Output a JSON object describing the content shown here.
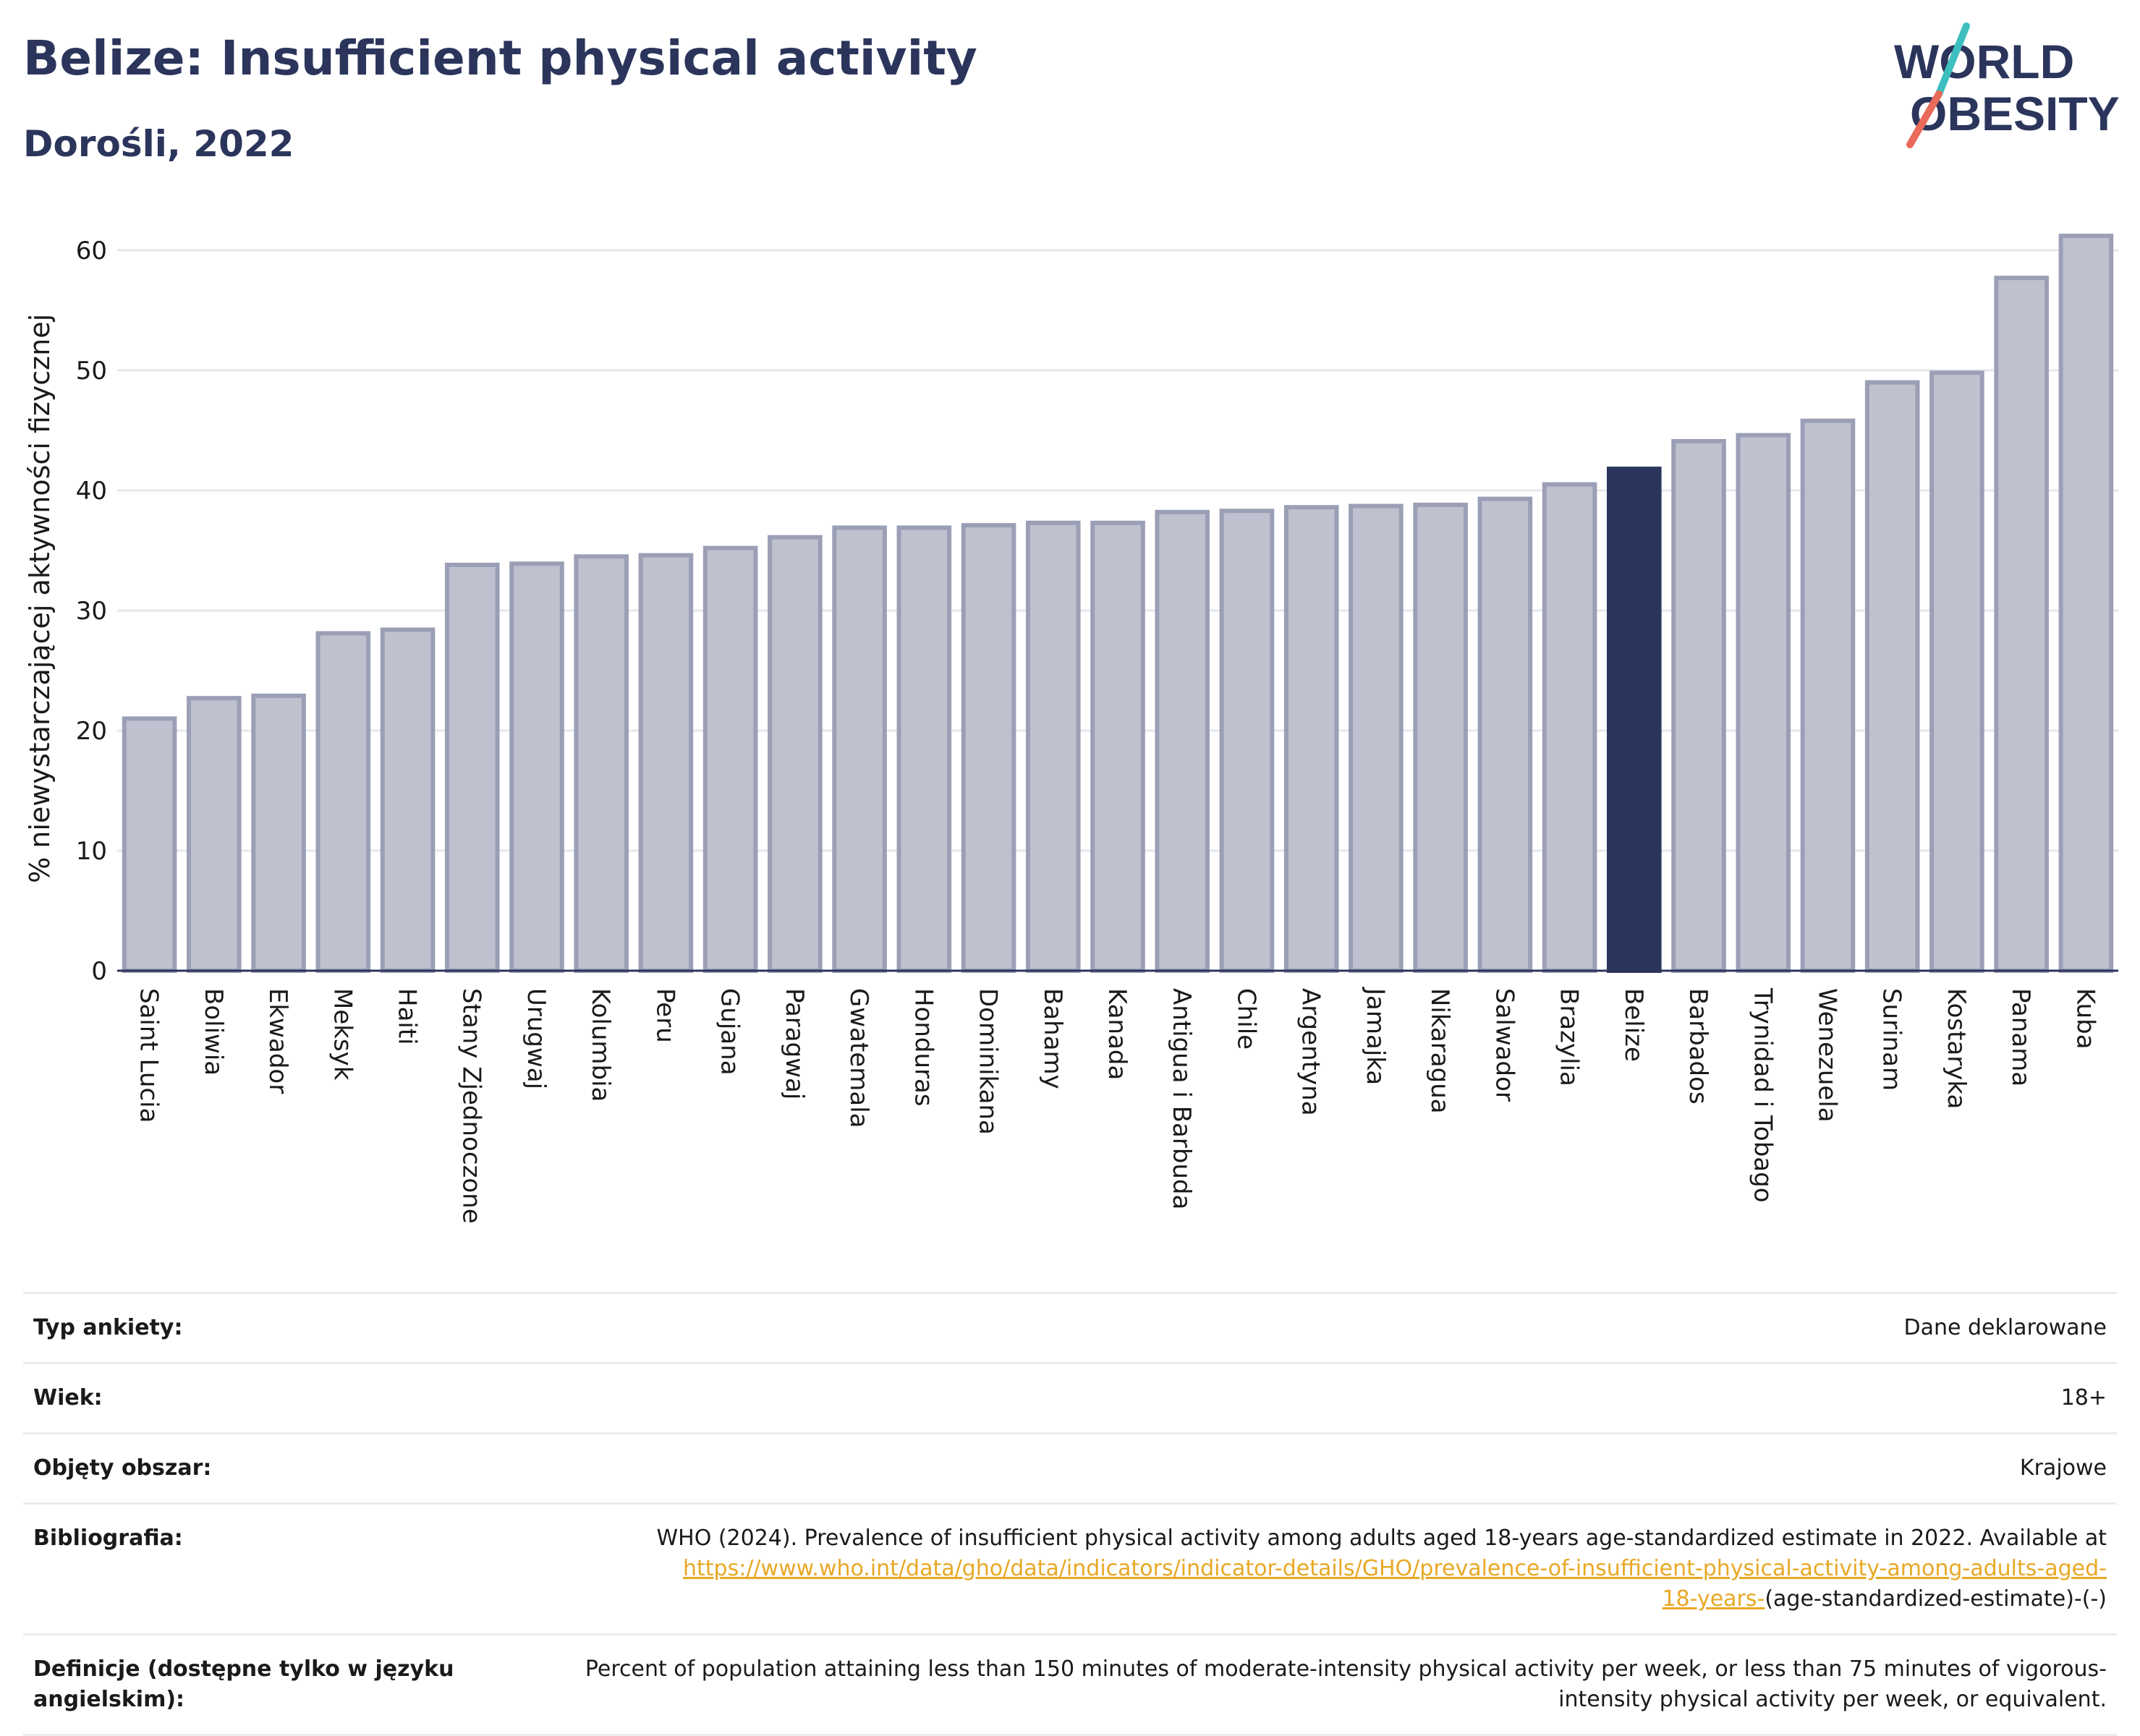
{
  "header": {
    "title": "Belize: Insufficient physical activity",
    "subtitle": "Dorośli, 2022",
    "logo_line1": "WORLD",
    "logo_line2": "OBESITY"
  },
  "colors": {
    "highlight_bar": "#2b355c",
    "bar_fill": "#bfc1ce",
    "bar_stroke": "#9b9fb6",
    "title": "#2b355c",
    "link": "#e8a825",
    "logo_slash_teal": "#3dbfc0",
    "logo_slash_red": "#ea6a5a"
  },
  "chart_data": {
    "type": "bar",
    "ylabel": "% niewystarczającej aktywności fizycznej",
    "ylim": [
      0,
      62
    ],
    "yticks": [
      0,
      10,
      20,
      30,
      40,
      50,
      60
    ],
    "grid": true,
    "highlight": "Belize",
    "categories": [
      "Saint Lucia",
      "Boliwia",
      "Ekwador",
      "Meksyk",
      "Haiti",
      "Stany Zjednoczone",
      "Urugwaj",
      "Kolumbia",
      "Peru",
      "Gujana",
      "Paragwaj",
      "Gwatemala",
      "Honduras",
      "Dominikana",
      "Bahamy",
      "Kanada",
      "Antigua i Barbuda",
      "Chile",
      "Argentyna",
      "Jamajka",
      "Nikaragua",
      "Salwador",
      "Brazylia",
      "Belize",
      "Barbados",
      "Trynidad i Tobago",
      "Wenezuela",
      "Surinam",
      "Kostaryka",
      "Panama",
      "Kuba"
    ],
    "values": [
      21.0,
      22.7,
      22.9,
      28.1,
      28.4,
      33.8,
      33.9,
      34.5,
      34.6,
      35.2,
      36.1,
      36.9,
      36.9,
      37.1,
      37.3,
      37.3,
      38.2,
      38.3,
      38.6,
      38.7,
      38.8,
      39.3,
      40.5,
      41.8,
      44.1,
      44.6,
      45.8,
      49.0,
      49.8,
      57.7,
      61.2
    ]
  },
  "meta": {
    "survey_type": {
      "label": "Typ ankiety:",
      "value": "Dane deklarowane"
    },
    "age": {
      "label": "Wiek:",
      "value": "18+"
    },
    "area": {
      "label": "Objęty obszar:",
      "value": "Krajowe"
    },
    "bibliography": {
      "label": "Bibliografia:",
      "text": "WHO (2024). Prevalence of insufficient physical activity among adults aged 18-years age-standardized estimate in 2022. Available at",
      "link_line1": "https://www.who.int/data/gho/data/indicators/indicator-details/GHO/prevalence-of-insufficient-physical-activity-among-adults-aged-",
      "link_line2": "18-years-",
      "tail": "(age-standardized-estimate)-(-)"
    },
    "definitions": {
      "label": "Definicje (dostępne tylko w języku angielskim):",
      "value": "Percent of population attaining less than 150 minutes of moderate-intensity physical activity per week, or less than 75 minutes of vigorous-intensity physical activity per week, or equivalent."
    }
  }
}
